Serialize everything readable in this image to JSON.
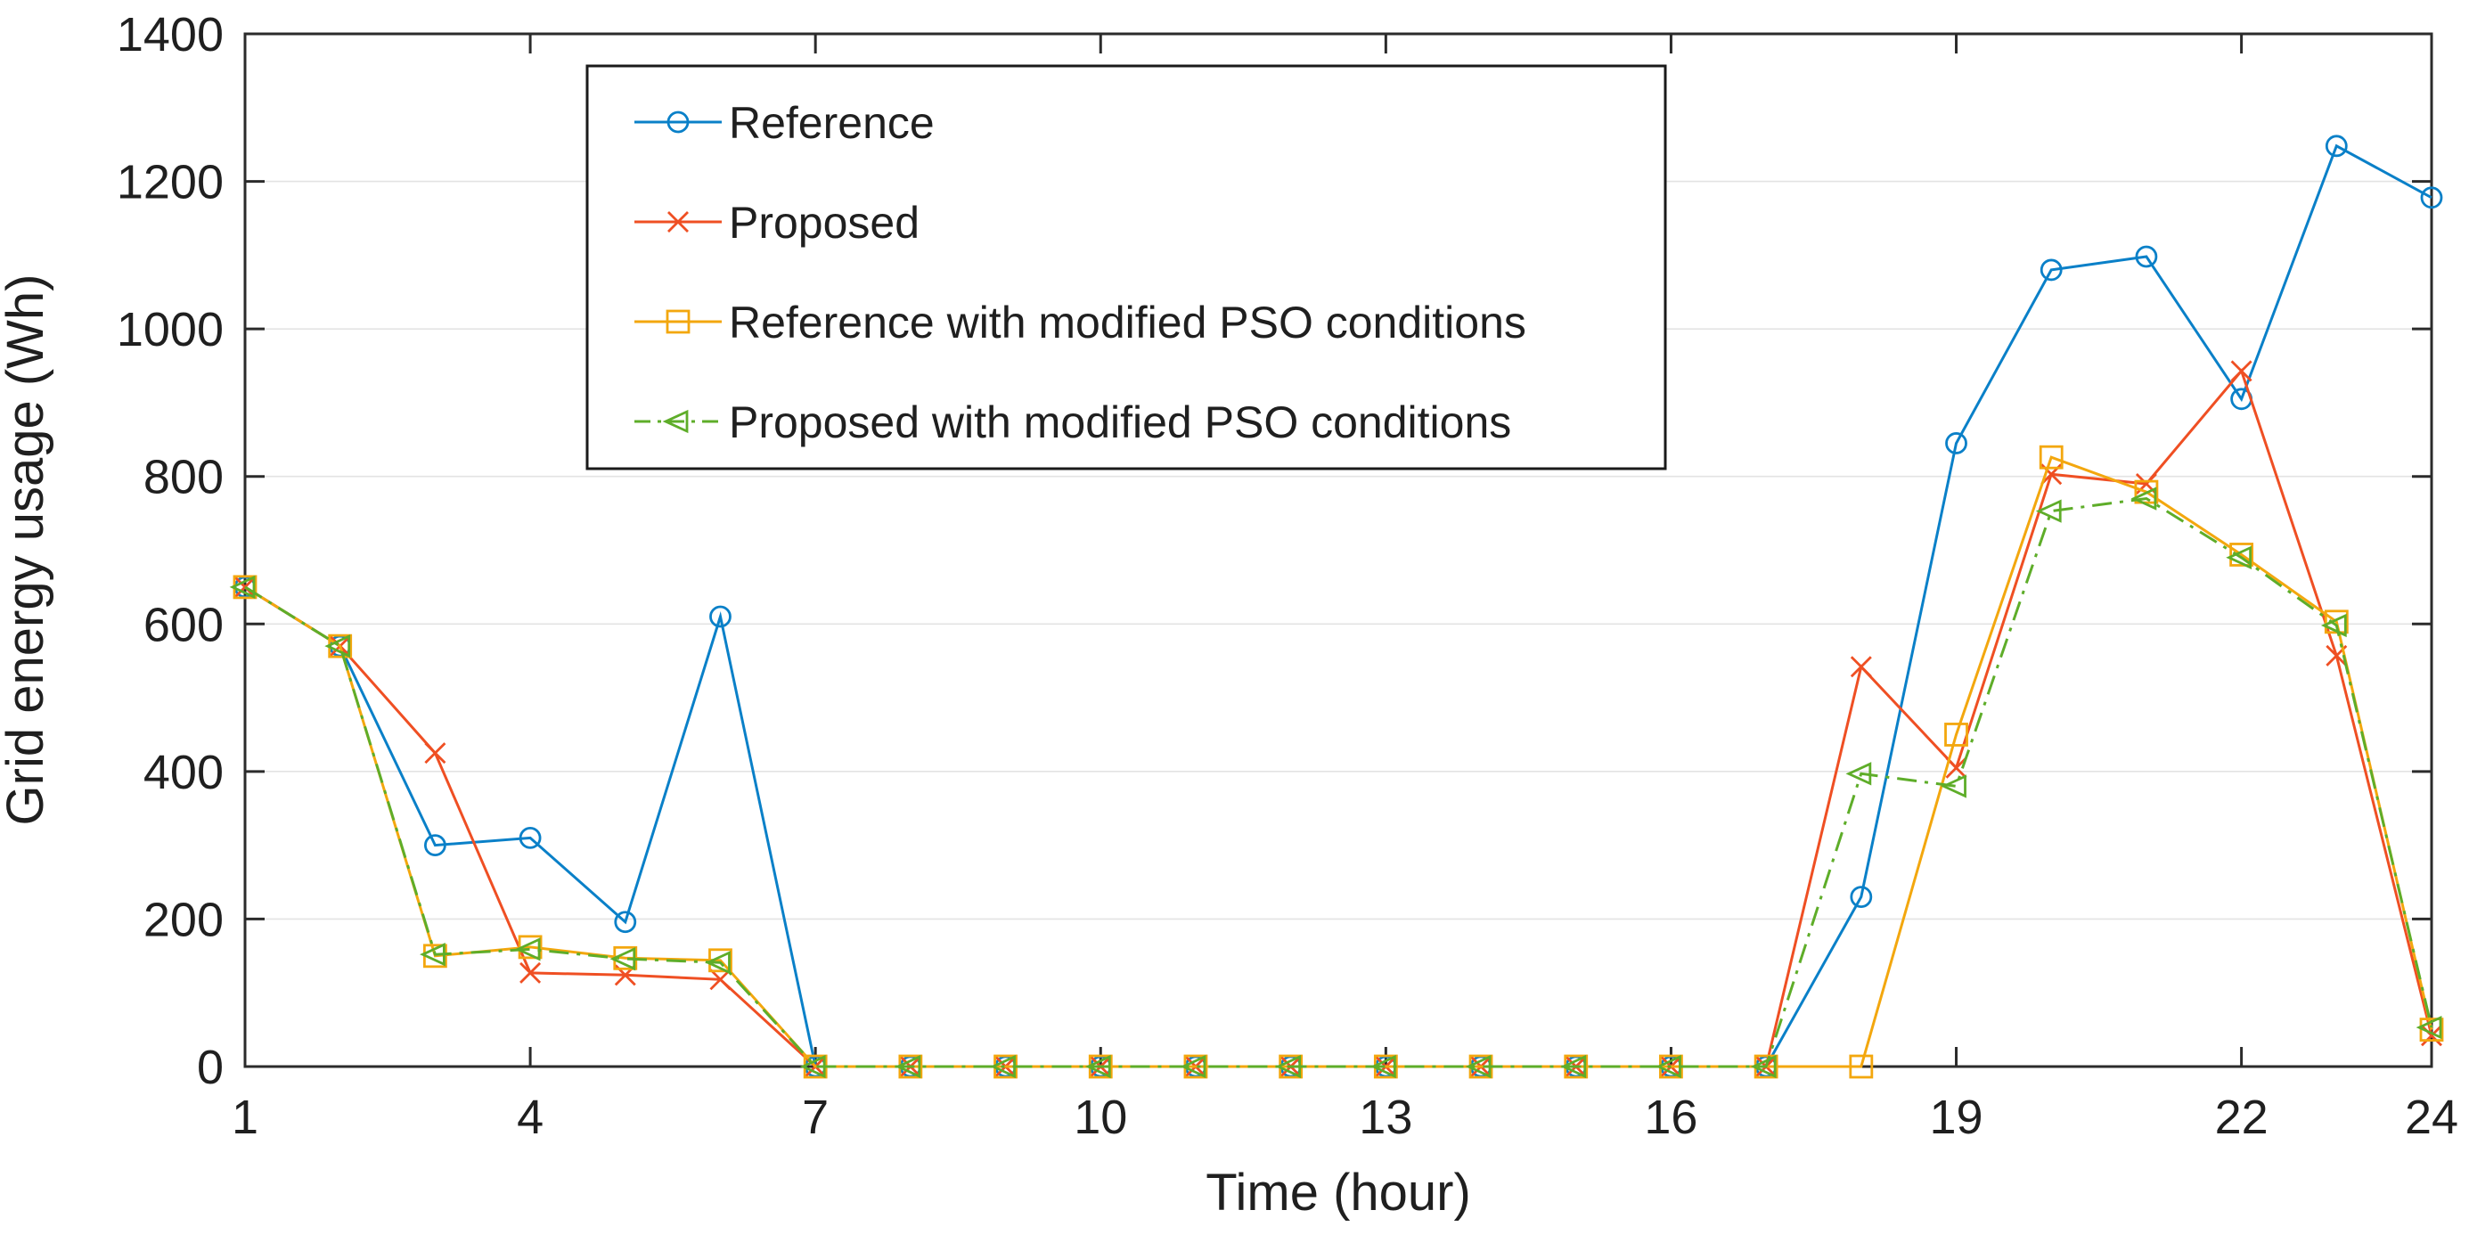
{
  "chart_data": {
    "type": "line",
    "title": "",
    "xlabel": "Time (hour)",
    "ylabel": "Grid energy usage (Wh)",
    "x": [
      1,
      2,
      3,
      4,
      5,
      6,
      7,
      8,
      9,
      10,
      11,
      12,
      13,
      14,
      15,
      16,
      17,
      18,
      19,
      20,
      21,
      22,
      23,
      24
    ],
    "x_ticks": [
      1,
      4,
      7,
      10,
      13,
      16,
      19,
      22,
      24
    ],
    "x_tick_labels": [
      "1",
      "4",
      "7",
      "10",
      "13",
      "16",
      "19",
      "22",
      "24"
    ],
    "xlim": [
      1,
      24
    ],
    "ylim": [
      0,
      1400
    ],
    "y_tick_step": 200,
    "y_ticks": [
      0,
      200,
      400,
      600,
      800,
      1000,
      1200,
      1400
    ],
    "y_tick_labels": [
      "0",
      "200",
      "400",
      "600",
      "800",
      "1000",
      "1200",
      "1400"
    ],
    "grid": "horizontal",
    "grid_color": "#e3e3e3",
    "axis_color": "#2b2b2b",
    "legend_position": "upper-left-inside",
    "series": [
      {
        "name": "Reference",
        "color": "#0a80c8",
        "marker": "circle",
        "line": "solid",
        "values": [
          650,
          570,
          300,
          310,
          196,
          610,
          0,
          0,
          0,
          0,
          0,
          0,
          0,
          0,
          0,
          0,
          0,
          230,
          845,
          1080,
          1098,
          905,
          1248,
          1178
        ]
      },
      {
        "name": "Proposed",
        "color": "#ef4f23",
        "marker": "x",
        "line": "solid",
        "values": [
          650,
          570,
          425,
          127,
          124,
          118,
          0,
          0,
          0,
          0,
          0,
          0,
          0,
          0,
          0,
          0,
          0,
          542,
          405,
          803,
          790,
          943,
          557,
          42
        ]
      },
      {
        "name": "Reference with modified PSO conditions",
        "color": "#f3a70e",
        "marker": "square",
        "line": "solid",
        "values": [
          650,
          570,
          150,
          162,
          147,
          144,
          0,
          0,
          0,
          0,
          0,
          0,
          0,
          0,
          0,
          0,
          0,
          0,
          450,
          826,
          779,
          694,
          603,
          50
        ]
      },
      {
        "name": "Proposed with modified PSO conditions",
        "color": "#5ead29",
        "marker": "triangle-left",
        "line": "dashdot",
        "values": [
          650,
          570,
          152,
          159,
          146,
          141,
          0,
          0,
          0,
          0,
          0,
          0,
          0,
          0,
          0,
          0,
          0,
          397,
          380,
          753,
          770,
          690,
          598,
          53
        ]
      }
    ]
  }
}
